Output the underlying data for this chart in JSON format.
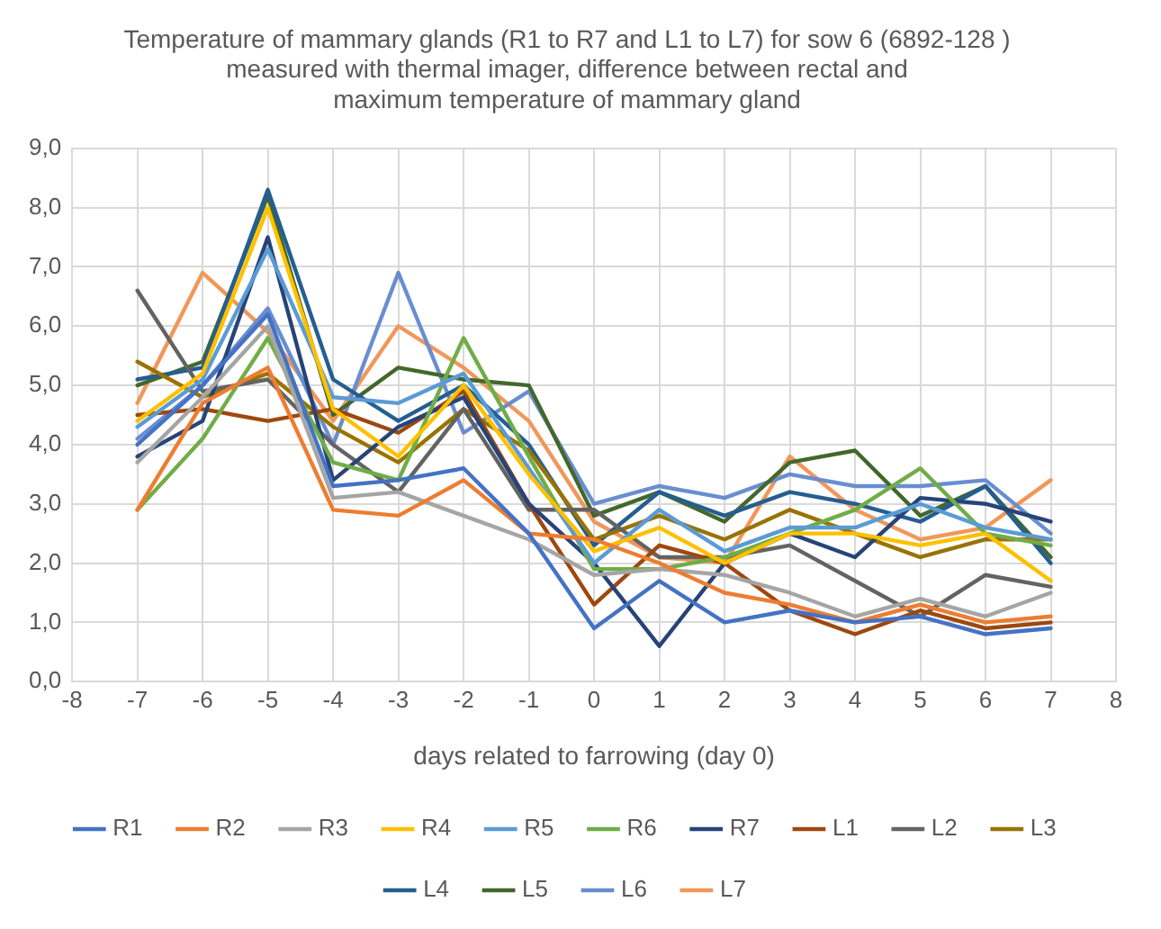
{
  "chart_data": {
    "type": "line",
    "title": "Temperature of mammary glands (R1 to R7 and L1 to L7) for sow 6 (6892-128 )\nmeasured with thermal imager, difference between rectal and\nmaximum temperature of mammary gland",
    "xlabel": "days related to farrowing (day 0)",
    "x": [
      -7,
      -6,
      -5,
      -4,
      -3,
      -2,
      -1,
      0,
      1,
      2,
      3,
      4,
      5,
      6,
      7
    ],
    "xlim": [
      -8,
      8
    ],
    "xticks": [
      -8,
      -7,
      -6,
      -5,
      -4,
      -3,
      -2,
      -1,
      0,
      1,
      2,
      3,
      4,
      5,
      6,
      7,
      8
    ],
    "ylim": [
      0,
      9
    ],
    "yticks": [
      {
        "value": 0,
        "label": "0,0"
      },
      {
        "value": 1,
        "label": "1,0"
      },
      {
        "value": 2,
        "label": "2,0"
      },
      {
        "value": 3,
        "label": "3,0"
      },
      {
        "value": 4,
        "label": "4,0"
      },
      {
        "value": 5,
        "label": "5,0"
      },
      {
        "value": 6,
        "label": "6,0"
      },
      {
        "value": 7,
        "label": "7,0"
      },
      {
        "value": 8,
        "label": "8,0"
      },
      {
        "value": 9,
        "label": "9,0"
      }
    ],
    "grid": true,
    "legend": "bottom",
    "marker": "none",
    "line_style": "solid",
    "series": [
      {
        "name": "R1",
        "color": "#4472c4",
        "values": [
          4.0,
          5.0,
          6.2,
          3.3,
          3.4,
          3.6,
          2.5,
          0.9,
          1.7,
          1.0,
          1.2,
          1.0,
          1.1,
          0.8,
          0.9
        ]
      },
      {
        "name": "R2",
        "color": "#ed7d31",
        "values": [
          2.9,
          4.7,
          5.3,
          2.9,
          2.8,
          3.4,
          2.5,
          2.4,
          2.0,
          1.5,
          1.3,
          1.0,
          1.3,
          1.0,
          1.1
        ]
      },
      {
        "name": "R3",
        "color": "#a5a5a5",
        "values": [
          3.7,
          4.8,
          6.0,
          3.1,
          3.2,
          2.8,
          2.4,
          1.8,
          1.9,
          1.8,
          1.5,
          1.1,
          1.4,
          1.1,
          1.5
        ]
      },
      {
        "name": "R4",
        "color": "#ffc000",
        "values": [
          4.4,
          5.2,
          8.0,
          4.6,
          3.8,
          5.0,
          3.5,
          2.2,
          2.6,
          2.0,
          2.5,
          2.5,
          2.3,
          2.5,
          1.7
        ]
      },
      {
        "name": "R5",
        "color": "#5b9bd5",
        "values": [
          4.3,
          5.1,
          7.3,
          4.8,
          4.7,
          5.2,
          3.6,
          2.0,
          2.9,
          2.2,
          2.6,
          2.6,
          3.0,
          2.6,
          2.4
        ]
      },
      {
        "name": "R6",
        "color": "#70ad47",
        "values": [
          2.9,
          4.1,
          5.8,
          3.7,
          3.4,
          5.8,
          3.8,
          1.9,
          1.9,
          2.1,
          2.5,
          2.9,
          3.6,
          2.5,
          2.3
        ]
      },
      {
        "name": "R7",
        "color": "#264478",
        "values": [
          3.8,
          4.4,
          7.5,
          3.4,
          4.3,
          4.8,
          3.0,
          2.0,
          0.6,
          2.0,
          2.5,
          2.1,
          3.1,
          3.0,
          2.7
        ]
      },
      {
        "name": "L1",
        "color": "#9e480e",
        "values": [
          4.5,
          4.6,
          4.4,
          4.6,
          4.2,
          4.9,
          3.0,
          1.3,
          2.3,
          2.0,
          1.2,
          0.8,
          1.2,
          0.9,
          1.0
        ]
      },
      {
        "name": "L2",
        "color": "#636363",
        "values": [
          6.6,
          4.9,
          5.1,
          4.0,
          3.2,
          4.6,
          2.9,
          2.9,
          2.1,
          2.1,
          2.3,
          1.7,
          1.1,
          1.8,
          1.6
        ]
      },
      {
        "name": "L3",
        "color": "#997300",
        "values": [
          5.4,
          4.8,
          5.2,
          4.3,
          3.7,
          4.6,
          3.9,
          2.4,
          2.8,
          2.4,
          2.9,
          2.5,
          2.1,
          2.4,
          2.4
        ]
      },
      {
        "name": "L4",
        "color": "#255e91",
        "values": [
          5.1,
          5.3,
          8.3,
          5.1,
          4.4,
          5.0,
          4.0,
          2.3,
          3.2,
          2.8,
          3.2,
          3.0,
          2.7,
          3.3,
          2.0
        ]
      },
      {
        "name": "L5",
        "color": "#43682b",
        "values": [
          5.0,
          5.4,
          8.2,
          4.5,
          5.3,
          5.1,
          5.0,
          2.8,
          3.2,
          2.7,
          3.7,
          3.9,
          2.8,
          3.3,
          2.1
        ]
      },
      {
        "name": "L6",
        "color": "#698ed0",
        "values": [
          4.1,
          5.0,
          6.3,
          4.0,
          6.9,
          4.2,
          4.9,
          3.0,
          3.3,
          3.1,
          3.5,
          3.3,
          3.3,
          3.4,
          2.5
        ]
      },
      {
        "name": "L7",
        "color": "#f1975a",
        "values": [
          4.7,
          6.9,
          5.9,
          4.4,
          6.0,
          5.3,
          4.4,
          2.7,
          2.1,
          2.0,
          3.8,
          2.9,
          2.4,
          2.6,
          3.4
        ]
      }
    ]
  }
}
